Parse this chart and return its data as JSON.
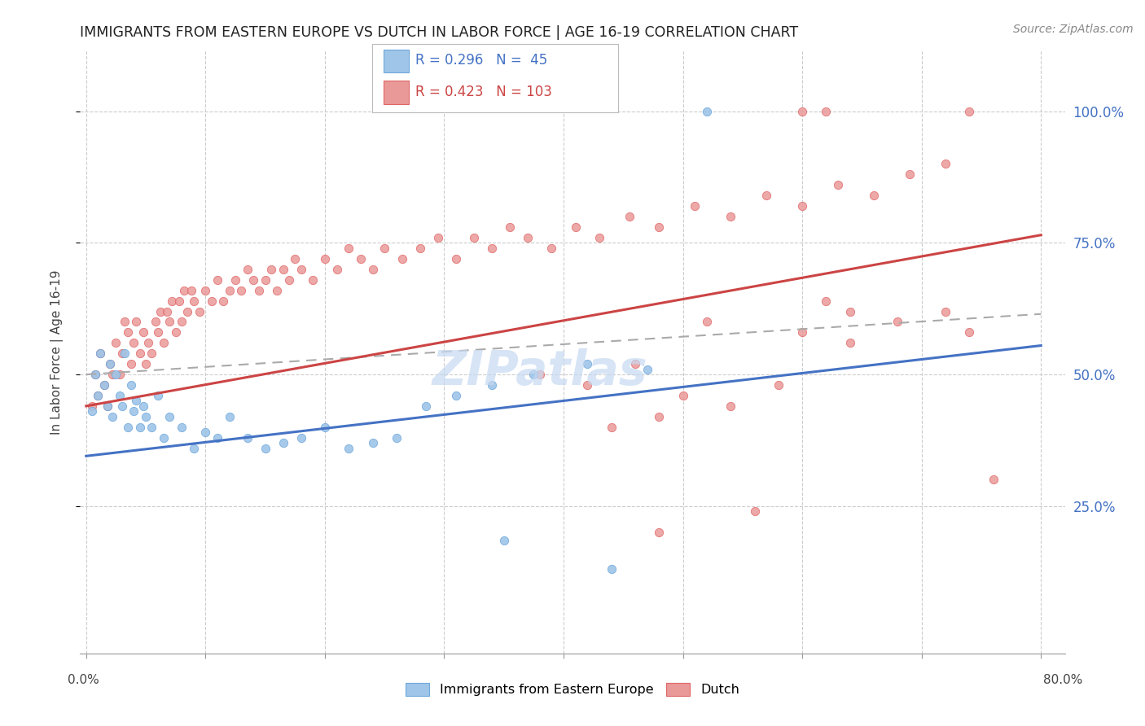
{
  "title": "IMMIGRANTS FROM EASTERN EUROPE VS DUTCH IN LABOR FORCE | AGE 16-19 CORRELATION CHART",
  "source": "Source: ZipAtlas.com",
  "ylabel": "In Labor Force | Age 16-19",
  "blue_color": "#9fc5e8",
  "blue_edge_color": "#6fa8dc",
  "pink_color": "#ea9999",
  "pink_edge_color": "#e06666",
  "blue_line_color": "#4472c4",
  "pink_line_color": "#cc4444",
  "dash_line_color": "#aaaaaa",
  "grid_color": "#cccccc",
  "right_tick_color": "#4472c4",
  "watermark_color": "#c5d9f1",
  "blue_line_start_y": 0.345,
  "blue_line_end_y": 0.555,
  "pink_line_start_y": 0.44,
  "pink_line_end_y": 0.765,
  "dash_line_start_y": 0.5,
  "dash_line_end_y": 0.615,
  "xmin": 0.0,
  "xmax": 0.8,
  "ymin": 0.0,
  "ymax": 1.1,
  "blue_scatter_x": [
    0.52,
    0.005,
    0.008,
    0.01,
    0.012,
    0.015,
    0.018,
    0.02,
    0.022,
    0.025,
    0.028,
    0.03,
    0.032,
    0.035,
    0.038,
    0.04,
    0.042,
    0.045,
    0.048,
    0.05,
    0.055,
    0.06,
    0.065,
    0.07,
    0.08,
    0.09,
    0.1,
    0.11,
    0.12,
    0.135,
    0.15,
    0.165,
    0.18,
    0.2,
    0.22,
    0.24,
    0.26,
    0.285,
    0.31,
    0.34,
    0.375,
    0.42,
    0.47,
    0.44,
    0.35
  ],
  "blue_scatter_y": [
    1.0,
    0.43,
    0.5,
    0.46,
    0.54,
    0.48,
    0.44,
    0.52,
    0.42,
    0.5,
    0.46,
    0.44,
    0.54,
    0.4,
    0.48,
    0.43,
    0.45,
    0.4,
    0.44,
    0.42,
    0.4,
    0.46,
    0.38,
    0.42,
    0.4,
    0.36,
    0.39,
    0.38,
    0.42,
    0.38,
    0.36,
    0.37,
    0.38,
    0.4,
    0.36,
    0.37,
    0.38,
    0.44,
    0.46,
    0.48,
    0.5,
    0.52,
    0.51,
    0.13,
    0.185
  ],
  "pink_scatter_x": [
    0.005,
    0.008,
    0.01,
    0.012,
    0.015,
    0.018,
    0.02,
    0.022,
    0.025,
    0.028,
    0.03,
    0.032,
    0.035,
    0.038,
    0.04,
    0.042,
    0.045,
    0.048,
    0.05,
    0.052,
    0.055,
    0.058,
    0.06,
    0.062,
    0.065,
    0.068,
    0.07,
    0.072,
    0.075,
    0.078,
    0.08,
    0.082,
    0.085,
    0.088,
    0.09,
    0.095,
    0.1,
    0.105,
    0.11,
    0.115,
    0.12,
    0.125,
    0.13,
    0.135,
    0.14,
    0.145,
    0.15,
    0.155,
    0.16,
    0.165,
    0.17,
    0.175,
    0.18,
    0.19,
    0.2,
    0.21,
    0.22,
    0.23,
    0.24,
    0.25,
    0.265,
    0.28,
    0.295,
    0.31,
    0.325,
    0.34,
    0.355,
    0.37,
    0.39,
    0.41,
    0.43,
    0.455,
    0.48,
    0.51,
    0.54,
    0.57,
    0.6,
    0.63,
    0.66,
    0.69,
    0.38,
    0.42,
    0.46,
    0.5,
    0.54,
    0.58,
    0.62,
    0.64,
    0.44,
    0.48,
    0.52,
    0.6,
    0.64,
    0.68,
    0.72,
    0.74,
    0.76,
    0.6,
    0.62,
    0.74,
    0.72,
    0.56,
    0.48
  ],
  "pink_scatter_y": [
    0.44,
    0.5,
    0.46,
    0.54,
    0.48,
    0.44,
    0.52,
    0.5,
    0.56,
    0.5,
    0.54,
    0.6,
    0.58,
    0.52,
    0.56,
    0.6,
    0.54,
    0.58,
    0.52,
    0.56,
    0.54,
    0.6,
    0.58,
    0.62,
    0.56,
    0.62,
    0.6,
    0.64,
    0.58,
    0.64,
    0.6,
    0.66,
    0.62,
    0.66,
    0.64,
    0.62,
    0.66,
    0.64,
    0.68,
    0.64,
    0.66,
    0.68,
    0.66,
    0.7,
    0.68,
    0.66,
    0.68,
    0.7,
    0.66,
    0.7,
    0.68,
    0.72,
    0.7,
    0.68,
    0.72,
    0.7,
    0.74,
    0.72,
    0.7,
    0.74,
    0.72,
    0.74,
    0.76,
    0.72,
    0.76,
    0.74,
    0.78,
    0.76,
    0.74,
    0.78,
    0.76,
    0.8,
    0.78,
    0.82,
    0.8,
    0.84,
    0.82,
    0.86,
    0.84,
    0.88,
    0.5,
    0.48,
    0.52,
    0.46,
    0.44,
    0.48,
    0.64,
    0.62,
    0.4,
    0.42,
    0.6,
    0.58,
    0.56,
    0.6,
    0.62,
    0.58,
    0.3,
    1.0,
    1.0,
    1.0,
    0.9,
    0.24,
    0.2
  ]
}
